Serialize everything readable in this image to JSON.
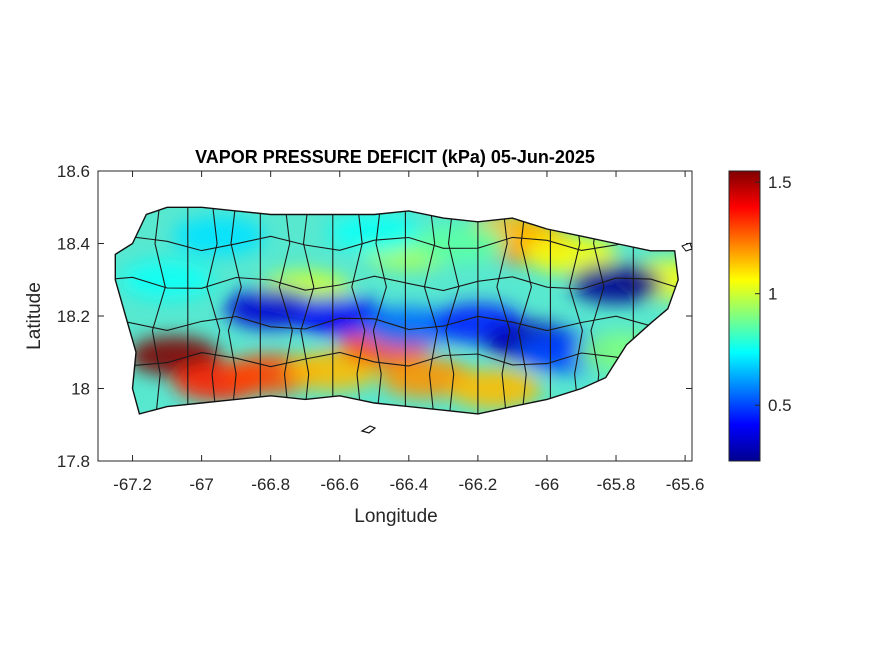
{
  "figure": {
    "title": "VAPOR PRESSURE DEFICIT (kPa) 05-Jun-2025",
    "xlabel": "Longitude",
    "ylabel": "Latitude"
  },
  "axes": {
    "xlim": [
      -67.3,
      -65.58
    ],
    "ylim": [
      17.8,
      18.6
    ],
    "xticks": [
      -67.2,
      -67,
      -66.8,
      -66.6,
      -66.4,
      -66.2,
      -66,
      -65.8,
      -65.6
    ],
    "xtick_labels": [
      "-67.2",
      "-67",
      "-66.8",
      "-66.6",
      "-66.4",
      "-66.2",
      "-66",
      "-65.8",
      "-65.6"
    ],
    "yticks": [
      17.8,
      18,
      18.2,
      18.4,
      18.6
    ],
    "ytick_labels": [
      "17.8",
      "18",
      "18.2",
      "18.4",
      "18.6"
    ]
  },
  "colorbar": {
    "range": [
      0.25,
      1.55
    ],
    "ticks": [
      0.5,
      1,
      1.5
    ],
    "tick_labels": [
      "0.5",
      "1",
      "1.5"
    ],
    "colormap": "jet",
    "stops": [
      "#00008f",
      "#0000ff",
      "#0080ff",
      "#00ffff",
      "#80ff80",
      "#ffff00",
      "#ff8000",
      "#ff0000",
      "#800000"
    ]
  },
  "chart_data": {
    "type": "heatmap",
    "title": "VAPOR PRESSURE DEFICIT (kPa) 05-Jun-2025",
    "xlabel": "Longitude",
    "ylabel": "Latitude",
    "xlim": [
      -67.3,
      -65.58
    ],
    "ylim": [
      17.8,
      18.6
    ],
    "units": "kPa",
    "color_range": [
      0.25,
      1.55
    ],
    "region_outline": [
      [
        -67.25,
        18.37
      ],
      [
        -67.2,
        18.4
      ],
      [
        -67.16,
        18.48
      ],
      [
        -67.1,
        18.5
      ],
      [
        -67.0,
        18.5
      ],
      [
        -66.9,
        18.49
      ],
      [
        -66.8,
        18.48
      ],
      [
        -66.7,
        18.48
      ],
      [
        -66.6,
        18.48
      ],
      [
        -66.5,
        18.48
      ],
      [
        -66.4,
        18.49
      ],
      [
        -66.3,
        18.47
      ],
      [
        -66.2,
        18.46
      ],
      [
        -66.1,
        18.47
      ],
      [
        -66.0,
        18.44
      ],
      [
        -65.9,
        18.42
      ],
      [
        -65.8,
        18.4
      ],
      [
        -65.7,
        18.38
      ],
      [
        -65.63,
        18.38
      ],
      [
        -65.62,
        18.3
      ],
      [
        -65.65,
        18.22
      ],
      [
        -65.7,
        18.18
      ],
      [
        -65.77,
        18.12
      ],
      [
        -65.83,
        18.03
      ],
      [
        -65.9,
        18.0
      ],
      [
        -66.0,
        17.97
      ],
      [
        -66.1,
        17.95
      ],
      [
        -66.2,
        17.93
      ],
      [
        -66.3,
        17.94
      ],
      [
        -66.4,
        17.95
      ],
      [
        -66.5,
        17.96
      ],
      [
        -66.6,
        17.98
      ],
      [
        -66.7,
        17.97
      ],
      [
        -66.8,
        17.98
      ],
      [
        -66.9,
        17.97
      ],
      [
        -67.0,
        17.96
      ],
      [
        -67.1,
        17.95
      ],
      [
        -67.18,
        17.93
      ],
      [
        -67.2,
        18.0
      ],
      [
        -67.19,
        18.1
      ],
      [
        -67.22,
        18.2
      ],
      [
        -67.25,
        18.3
      ],
      [
        -67.25,
        18.37
      ]
    ],
    "field_hotspots": [
      {
        "lon": -67.08,
        "lat": 18.09,
        "vpd": 1.55
      },
      {
        "lon": -66.95,
        "lat": 18.02,
        "vpd": 1.35
      },
      {
        "lon": -66.8,
        "lat": 18.04,
        "vpd": 1.3
      },
      {
        "lon": -66.62,
        "lat": 18.05,
        "vpd": 1.15
      },
      {
        "lon": -66.47,
        "lat": 18.12,
        "vpd": 1.3
      },
      {
        "lon": -66.35,
        "lat": 18.03,
        "vpd": 1.2
      },
      {
        "lon": -66.15,
        "lat": 18.0,
        "vpd": 1.15
      },
      {
        "lon": -66.05,
        "lat": 18.4,
        "vpd": 1.25
      },
      {
        "lon": -66.1,
        "lat": 18.43,
        "vpd": 1.15
      },
      {
        "lon": -65.93,
        "lat": 18.37,
        "vpd": 1.05
      },
      {
        "lon": -65.65,
        "lat": 18.3,
        "vpd": 1.05
      },
      {
        "lon": -66.7,
        "lat": 18.27,
        "vpd": 1.0
      },
      {
        "lon": -66.4,
        "lat": 18.38,
        "vpd": 0.95
      },
      {
        "lon": -66.8,
        "lat": 18.22,
        "vpd": 0.35
      },
      {
        "lon": -66.6,
        "lat": 18.2,
        "vpd": 0.4
      },
      {
        "lon": -66.4,
        "lat": 18.17,
        "vpd": 0.55
      },
      {
        "lon": -66.2,
        "lat": 18.18,
        "vpd": 0.45
      },
      {
        "lon": -66.05,
        "lat": 18.13,
        "vpd": 0.3
      },
      {
        "lon": -65.95,
        "lat": 18.1,
        "vpd": 0.5
      },
      {
        "lon": -65.8,
        "lat": 18.29,
        "vpd": 0.25
      },
      {
        "lon": -67.1,
        "lat": 18.3,
        "vpd": 0.75
      },
      {
        "lon": -66.95,
        "lat": 18.42,
        "vpd": 0.7
      },
      {
        "lon": -66.5,
        "lat": 18.43,
        "vpd": 0.75
      },
      {
        "lon": -66.25,
        "lat": 18.4,
        "vpd": 0.85
      },
      {
        "lon": -65.78,
        "lat": 18.1,
        "vpd": 0.9
      }
    ]
  }
}
